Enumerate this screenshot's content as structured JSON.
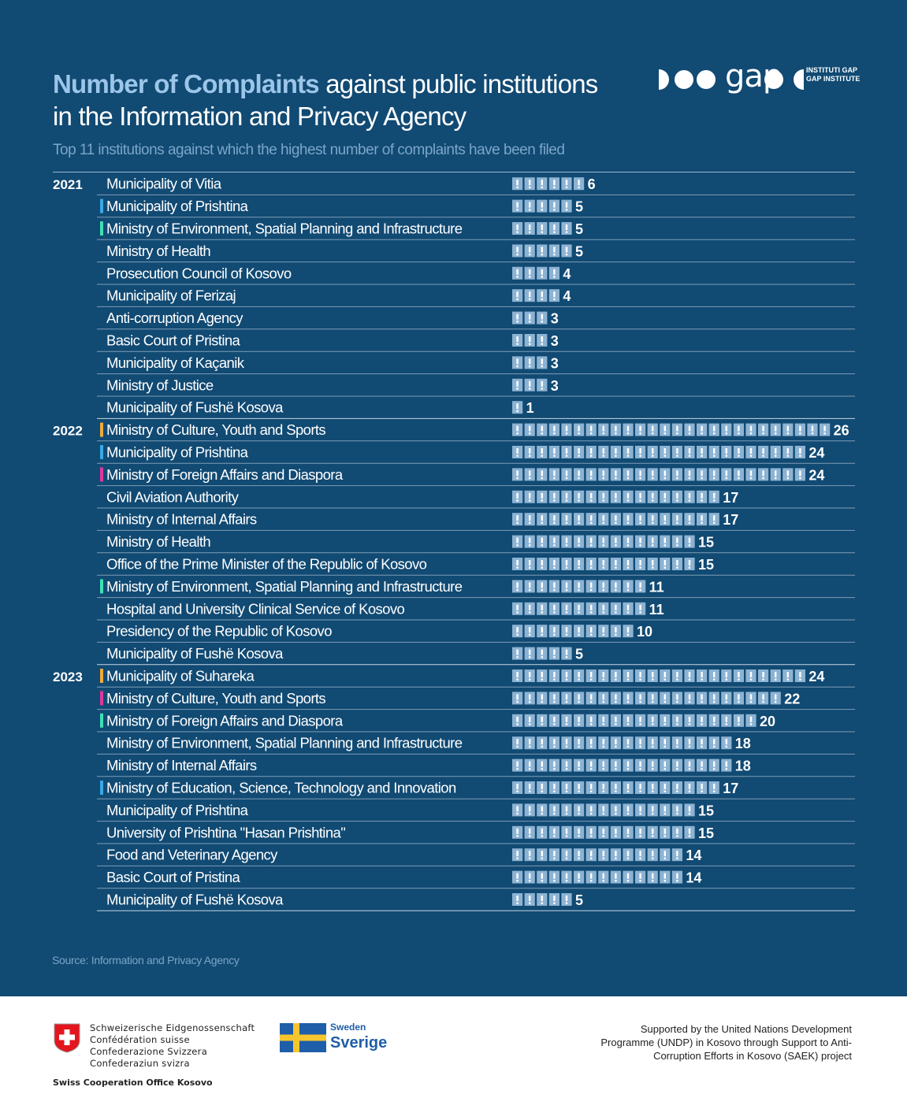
{
  "header": {
    "title_highlight": "Number of Complaints",
    "title_rest_line1": " against public institutions",
    "title_line2": "in  the Information and Privacy Agency",
    "subtitle": "Top 11 institutions against which the highest number of complaints have been filed"
  },
  "logo": {
    "wordmark": "gap",
    "institute_line1": "INSTITUTI GAP",
    "institute_line2": "GAP INSTITUTE"
  },
  "source": "Source: Information and Privacy Agency",
  "footer": {
    "swiss_line1": "Schweizerische Eidgenossenschaft",
    "swiss_line2": "Confédération suisse",
    "swiss_line3": "Confederazione Svizzera",
    "swiss_line4": "Confederaziun svizra",
    "swiss_office": "Swiss Cooperation Office Kosovo",
    "sweden_small": "Sweden",
    "sweden_big": "Sverige",
    "support_text": "Supported by the United Nations Development Programme  (UNDP) in Kosovo through Support to Anti-Corruption Efforts in Kosovo (SAEK) project"
  },
  "colors": {
    "background": "#114a73",
    "icon_fill": "#8db3d3",
    "marker_orange": "#f2a93b",
    "marker_blue": "#3ba7e6",
    "marker_green": "#3ee0b4",
    "marker_pink": "#e0389a"
  },
  "icon": "exclamation-box-icon",
  "chart_data": {
    "type": "table",
    "groups": [
      {
        "year": "2021",
        "rows": [
          {
            "name": "Municipality of Vitia",
            "value": 6,
            "marker": ""
          },
          {
            "name": "Municipality of Prishtina",
            "value": 5,
            "marker": "blue"
          },
          {
            "name": "Ministry of Environment, Spatial Planning and Infrastructure",
            "value": 5,
            "marker": "green"
          },
          {
            "name": "Ministry of Health",
            "value": 5,
            "marker": ""
          },
          {
            "name": "Prosecution Council of Kosovo",
            "value": 4,
            "marker": ""
          },
          {
            "name": "Municipality of Ferizaj",
            "value": 4,
            "marker": ""
          },
          {
            "name": "Anti-corruption Agency",
            "value": 3,
            "marker": ""
          },
          {
            "name": "Basic Court of Pristina",
            "value": 3,
            "marker": ""
          },
          {
            "name": "Municipality of Kaçanik",
            "value": 3,
            "marker": ""
          },
          {
            "name": "Ministry of Justice",
            "value": 3,
            "marker": ""
          },
          {
            "name": "Municipality of Fushë Kosova",
            "value": 1,
            "marker": ""
          }
        ]
      },
      {
        "year": "2022",
        "rows": [
          {
            "name": "Ministry of  Culture, Youth and Sports",
            "value": 26,
            "marker": "orange"
          },
          {
            "name": "Municipality of Prishtina",
            "value": 24,
            "marker": "blue"
          },
          {
            "name": "Ministry of Foreign Affairs and Diaspora",
            "value": 24,
            "marker": "pink"
          },
          {
            "name": "Civil Aviation Authority",
            "value": 17,
            "marker": ""
          },
          {
            "name": "Ministry of Internal Affairs",
            "value": 17,
            "marker": ""
          },
          {
            "name": "Ministry of Health",
            "value": 15,
            "marker": ""
          },
          {
            "name": "Office of the Prime Minister of the Republic of Kosovo",
            "value": 15,
            "marker": ""
          },
          {
            "name": "Ministry of Environment, Spatial Planning and Infrastructure",
            "value": 11,
            "marker": "green"
          },
          {
            "name": "Hospital and University Clinical Service of Kosovo",
            "value": 11,
            "marker": ""
          },
          {
            "name": "Presidency of the Republic of Kosovo",
            "value": 10,
            "marker": ""
          },
          {
            "name": "Municipality of Fushë Kosova",
            "value": 5,
            "marker": ""
          }
        ]
      },
      {
        "year": "2023",
        "rows": [
          {
            "name": "Municipality of  Suhareka",
            "value": 24,
            "marker": "orange"
          },
          {
            "name": "Ministry of Culture, Youth and Sports",
            "value": 22,
            "marker": "pink"
          },
          {
            "name": "Ministry of Foreign Affairs and Diaspora",
            "value": 20,
            "marker": "green"
          },
          {
            "name": "Ministry of Environment, Spatial Planning and Infrastructure",
            "value": 18,
            "marker": ""
          },
          {
            "name": "Ministry of Internal Affairs",
            "value": 18,
            "marker": ""
          },
          {
            "name": "Ministry of Education, Science, Technology and Innovation",
            "value": 17,
            "marker": "blue"
          },
          {
            "name": "Municipality of Prishtina",
            "value": 15,
            "marker": ""
          },
          {
            "name": "University of Prishtina \"Hasan Prishtina\"",
            "value": 15,
            "marker": ""
          },
          {
            "name": "Food and Veterinary Agency",
            "value": 14,
            "marker": ""
          },
          {
            "name": "Basic Court of Pristina",
            "value": 14,
            "marker": ""
          },
          {
            "name": "Municipality of Fushë Kosova",
            "value": 5,
            "marker": ""
          }
        ]
      }
    ]
  }
}
